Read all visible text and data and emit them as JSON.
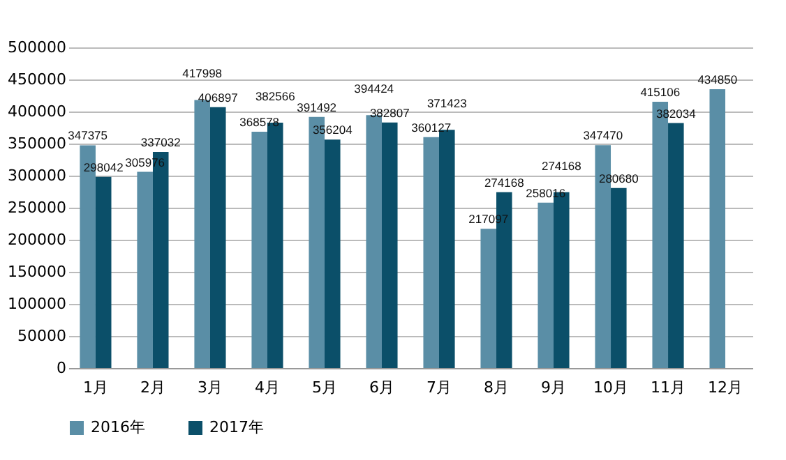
{
  "chart_data": {
    "type": "bar",
    "categories": [
      "1月",
      "2月",
      "3月",
      "4月",
      "5月",
      "6月",
      "7月",
      "8月",
      "9月",
      "10月",
      "11月",
      "12月"
    ],
    "series": [
      {
        "name": "2016年",
        "color": "#5a8ea6",
        "values": [
          347375,
          305976,
          417998,
          368578,
          391492,
          394424,
          360127,
          217097,
          258016,
          347470,
          415106,
          434850
        ]
      },
      {
        "name": "2017年",
        "color": "#0b4f69",
        "values": [
          298042,
          337032,
          406897,
          382566,
          356204,
          382807,
          371423,
          274168,
          274168,
          280680,
          382034,
          null
        ]
      }
    ],
    "ylim": [
      0,
      500000
    ],
    "yticks": [
      0,
      50000,
      100000,
      150000,
      200000,
      250000,
      300000,
      350000,
      400000,
      450000,
      500000
    ],
    "grid": "y",
    "legend": "bottom",
    "data_labels": true
  }
}
